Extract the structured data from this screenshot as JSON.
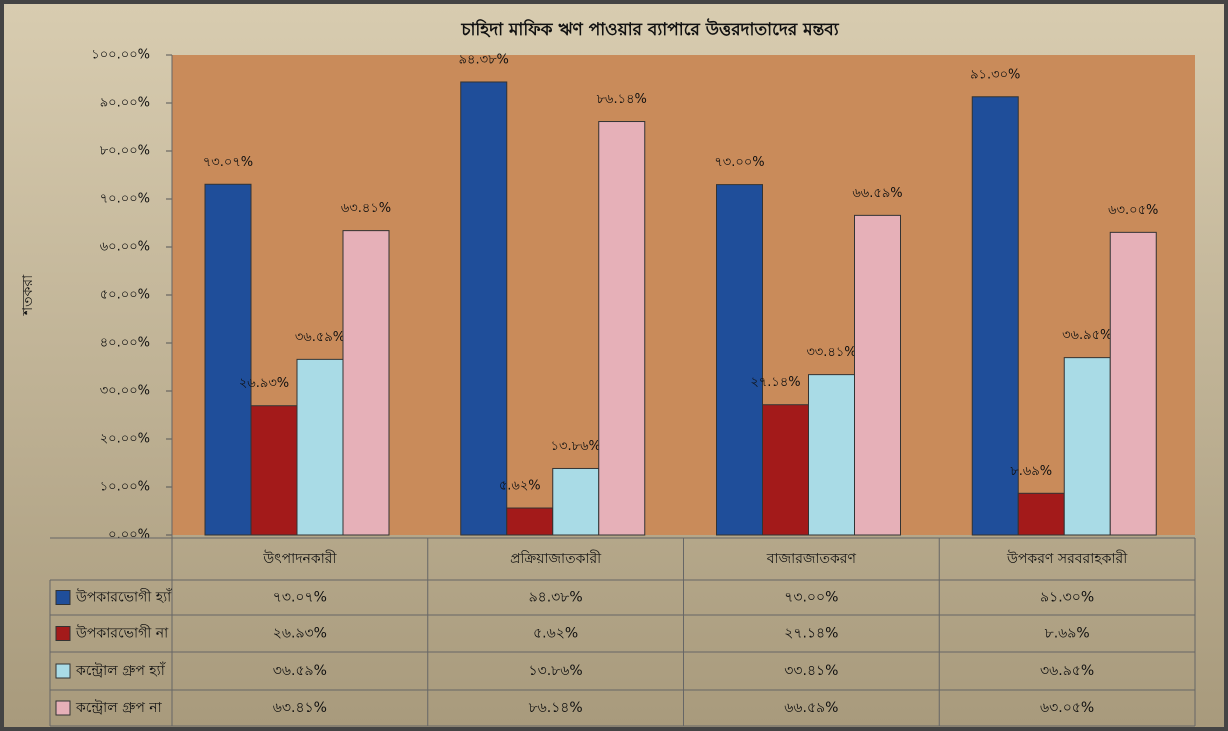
{
  "chart_data": {
    "type": "bar",
    "title": "চাহিদা মাফিক ঋণ পাওয়ার ব্যাপারে উত্তরদাতাদের মন্তব্য",
    "y_label": "শতকরা",
    "categories": [
      "উৎপাদনকারী",
      "প্রক্রিয়াজাতকারী",
      "বাজারজাতকরণ",
      "উপকরণ সরবরাহকারী"
    ],
    "series": [
      {
        "name": "উপকারভোগী হ্যাঁ",
        "color": "#1f4e9a",
        "values": [
          73.07,
          94.38,
          73.0,
          91.3
        ],
        "value_labels": [
          "৭৩.০৭%",
          "৯৪.৩৮%",
          "৭৩.০০%",
          "৯১.৩০%"
        ]
      },
      {
        "name": "উপকারভোগী না",
        "color": "#a31a1a",
        "values": [
          26.93,
          5.62,
          27.14,
          8.69
        ],
        "value_labels": [
          "২৬.৯৩%",
          "৫.৬২%",
          "২৭.১৪%",
          "৮.৬৯%"
        ]
      },
      {
        "name": "কন্ট্রোল গ্রুপ হ্যাঁ",
        "color": "#a9dbe6",
        "values": [
          36.59,
          13.86,
          33.41,
          36.95
        ],
        "value_labels": [
          "৩৬.৫৯%",
          "১৩.৮৬%",
          "৩৩.৪১%",
          "৩৬.৯৫%"
        ]
      },
      {
        "name": "কন্ট্রোল গ্রুপ না",
        "color": "#e6b0b8",
        "values": [
          63.41,
          86.14,
          66.59,
          63.05
        ],
        "value_labels": [
          "৬৩.৪১%",
          "৮৬.১৪%",
          "৬৬.৫৯%",
          "৬৩.০৫%"
        ]
      }
    ],
    "ylim": [
      0,
      100
    ],
    "yticks": [
      {
        "value": 0,
        "label": "০.০০%"
      },
      {
        "value": 10,
        "label": "১০.০০%"
      },
      {
        "value": 20,
        "label": "২০.০০%"
      },
      {
        "value": 30,
        "label": "৩০.০০%"
      },
      {
        "value": 40,
        "label": "৪০.০০%"
      },
      {
        "value": 50,
        "label": "৫০.০০%"
      },
      {
        "value": 60,
        "label": "৬০.০০%"
      },
      {
        "value": 70,
        "label": "৭০.০০%"
      },
      {
        "value": 80,
        "label": "৮০.০০%"
      },
      {
        "value": 90,
        "label": "৯০.০০%"
      },
      {
        "value": 100,
        "label": "১০০.০০%"
      }
    ]
  }
}
